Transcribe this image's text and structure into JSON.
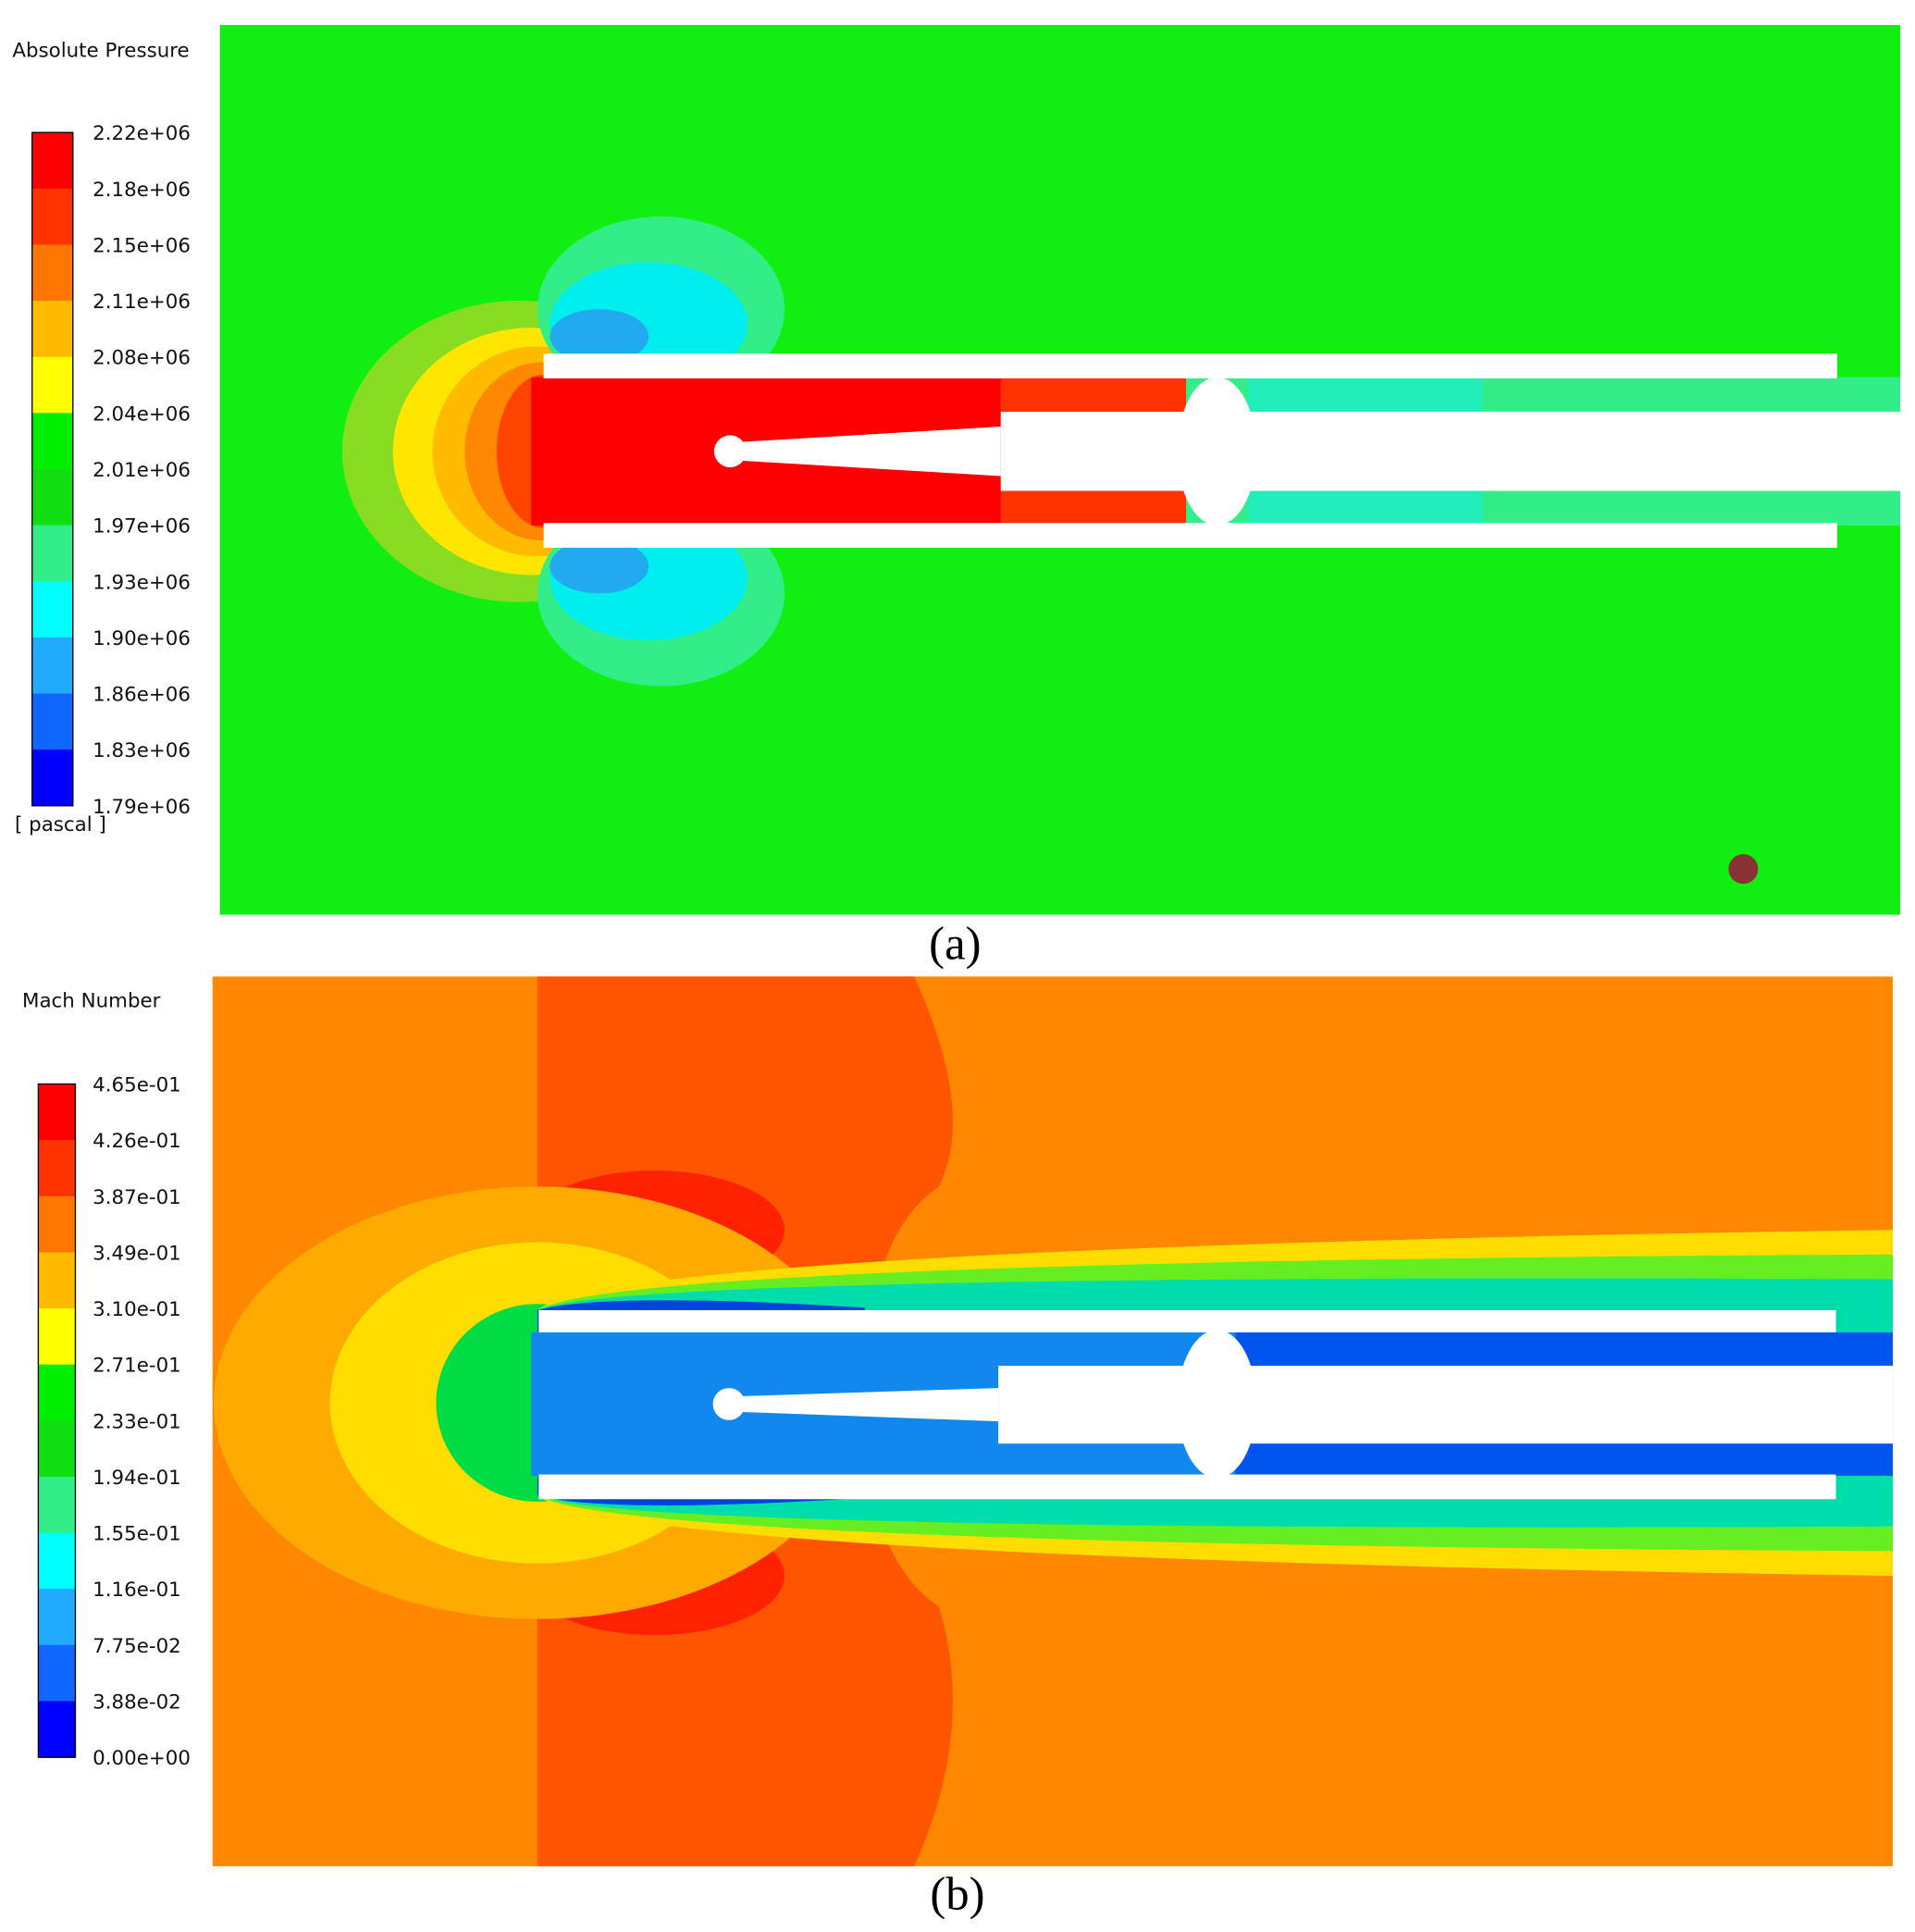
{
  "panels": [
    {
      "legend_title": "Absolute Pressure",
      "legend_labels": [
        "2.22e+06",
        "2.18e+06",
        "2.15e+06",
        "2.11e+06",
        "2.08e+06",
        "2.04e+06",
        "2.01e+06",
        "1.97e+06",
        "1.93e+06",
        "1.90e+06",
        "1.86e+06",
        "1.83e+06",
        "1.79e+06"
      ],
      "unit": "[ pascal ]",
      "caption": "(a)"
    },
    {
      "legend_title": "Mach Number",
      "legend_labels": [
        "4.65e-01",
        "4.26e-01",
        "3.87e-01",
        "3.49e-01",
        "3.10e-01",
        "2.71e-01",
        "2.33e-01",
        "1.94e-01",
        "1.55e-01",
        "1.16e-01",
        "7.75e-02",
        "3.88e-02",
        "0.00e+00"
      ],
      "caption": "(b)"
    }
  ]
}
